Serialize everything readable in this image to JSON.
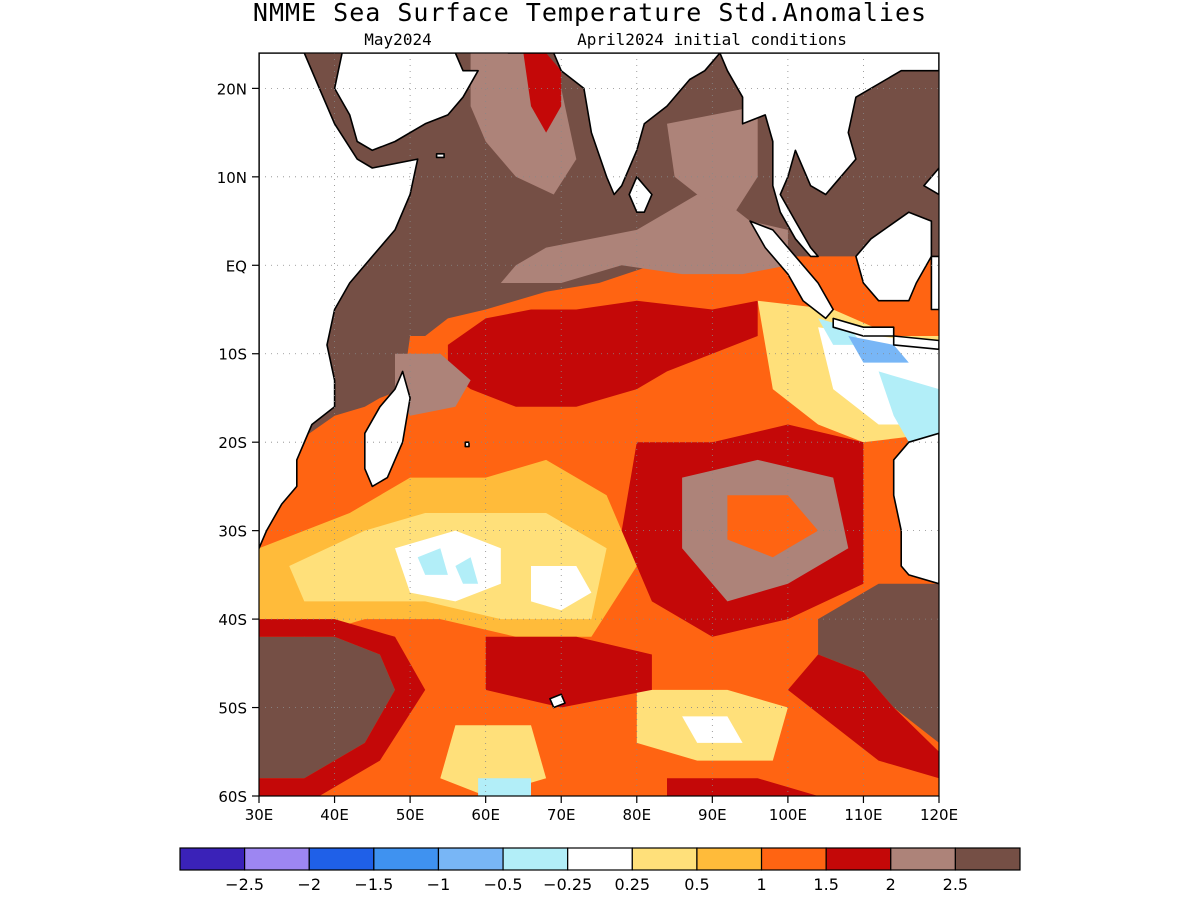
{
  "title": "NMME Sea Surface Temperature Std.Anomalies",
  "subtitle_left": "May2024",
  "subtitle_right": "April2024 initial conditions",
  "map": {
    "lon_range": [
      30,
      120
    ],
    "lat_range": [
      -60,
      24
    ],
    "lon_ticks": [
      {
        "value": 30,
        "label": "30E"
      },
      {
        "value": 40,
        "label": "40E"
      },
      {
        "value": 50,
        "label": "50E"
      },
      {
        "value": 60,
        "label": "60E"
      },
      {
        "value": 70,
        "label": "70E"
      },
      {
        "value": 80,
        "label": "80E"
      },
      {
        "value": 90,
        "label": "90E"
      },
      {
        "value": 100,
        "label": "100E"
      },
      {
        "value": 110,
        "label": "110E"
      },
      {
        "value": 120,
        "label": "120E"
      }
    ],
    "lat_ticks": [
      {
        "value": 20,
        "label": "20N"
      },
      {
        "value": 10,
        "label": "10N"
      },
      {
        "value": 0,
        "label": "EQ"
      },
      {
        "value": -10,
        "label": "10S"
      },
      {
        "value": -20,
        "label": "20S"
      },
      {
        "value": -30,
        "label": "30S"
      },
      {
        "value": -40,
        "label": "40S"
      },
      {
        "value": -50,
        "label": "50S"
      },
      {
        "value": -60,
        "label": "60S"
      }
    ],
    "gridlines": true
  },
  "colorbar": {
    "colors": [
      "#3a22b8",
      "#9d86f2",
      "#1f60e8",
      "#3f92f0",
      "#78b6f6",
      "#b2eef8",
      "#ffffff",
      "#ffe07a",
      "#ffbb3a",
      "#ff6412",
      "#c40808",
      "#ad8379",
      "#754f45"
    ],
    "labels": [
      "-2.5",
      "-2",
      "-1.5",
      "-1",
      "-0.5",
      "-0.25",
      "0.25",
      "0.5",
      "1",
      "1.5",
      "2",
      "2.5"
    ]
  },
  "land_color": "#ffffff",
  "coast_color": "#000000"
}
